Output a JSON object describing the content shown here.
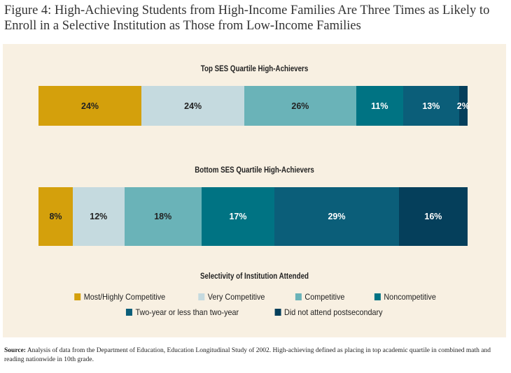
{
  "title": "Figure 4: High-Achieving Students from High-Income Families Are Three Times as Likely to Enroll in a Selective Institution as Those from Low-Income Families",
  "source_label": "Source:",
  "source_text": " Analysis of data from the Department of Education, Education Longitudinal Study of 2002. High-achieving defined as placing in top academic quartile in combined math and reading nationwide in 10th grade.",
  "chart_data": {
    "type": "bar",
    "stacked": true,
    "orientation": "horizontal",
    "legend_title": "Selectivity of Institution Attended",
    "categories": [
      "Most/Highly Competitive",
      "Very Competitive",
      "Competitive",
      "Noncompetitive",
      "Two-year or less than two-year",
      "Did not attend postsecondary"
    ],
    "colors": [
      "#d4a00c",
      "#c5dadf",
      "#6ab3b8",
      "#007383",
      "#0b5e79",
      "#053f5b"
    ],
    "text_colors": [
      "#222",
      "#222",
      "#222",
      "#fff",
      "#fff",
      "#fff"
    ],
    "series": [
      {
        "name": "Top SES Quartile High-Achievers",
        "values": [
          24,
          24,
          26,
          11,
          13,
          2
        ],
        "labels": [
          "24%",
          "24%",
          "26%",
          "11%",
          "13%",
          "2%"
        ]
      },
      {
        "name": "Bottom SES Quartile High-Achievers",
        "values": [
          8,
          12,
          18,
          17,
          29,
          16
        ],
        "labels": [
          "8%",
          "12%",
          "18%",
          "17%",
          "29%",
          "16%"
        ]
      }
    ],
    "xlim": [
      0,
      100
    ]
  }
}
